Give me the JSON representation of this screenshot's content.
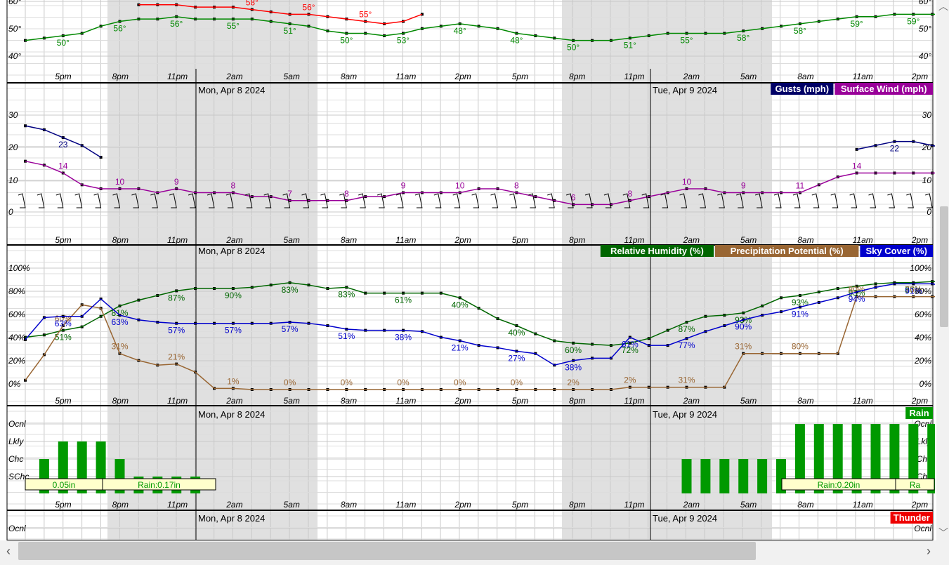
{
  "chart_data": [
    {
      "type": "line",
      "id": "temperature",
      "yticks": [
        "40°",
        "50°",
        "60°"
      ],
      "xticks": [
        "5pm",
        "8pm",
        "11pm",
        "2am",
        "5am",
        "8am",
        "11am",
        "2pm",
        "5pm",
        "8pm",
        "11pm",
        "2am",
        "5am",
        "8am",
        "11am",
        "2pm"
      ],
      "series": [
        {
          "color": "#008800",
          "values": [
            47,
            48,
            49,
            50,
            53,
            55,
            56,
            56,
            57,
            56,
            56,
            56,
            56,
            55,
            54,
            53,
            51,
            50,
            50,
            49,
            50,
            52,
            53,
            54,
            53,
            52,
            50,
            49,
            48,
            47,
            47,
            47,
            48,
            49,
            50,
            50,
            50,
            50,
            51,
            52,
            53,
            54,
            55,
            56,
            57,
            57,
            58,
            58,
            58,
            58,
            59,
            59,
            59,
            59,
            59,
            59
          ],
          "labels": [
            [
              "50°",
              2
            ],
            [
              "56°",
              5
            ],
            [
              "56°",
              8
            ],
            [
              "55°",
              11
            ],
            [
              "51°",
              14
            ],
            [
              "50°",
              17
            ],
            [
              "53°",
              20
            ],
            [
              "48°",
              23
            ],
            [
              "48°",
              26
            ],
            [
              "50°",
              29
            ],
            [
              "51°",
              32
            ],
            [
              "55°",
              35
            ],
            [
              "58°",
              38
            ],
            [
              "58°",
              41
            ],
            [
              "59°",
              44
            ],
            [
              "59°",
              47
            ]
          ]
        },
        {
          "color": "#ff0000",
          "values": [
            null,
            null,
            null,
            null,
            null,
            null,
            62,
            62,
            62,
            61,
            61,
            61,
            60,
            59,
            58,
            58,
            57,
            56,
            55,
            54,
            55,
            58,
            null,
            null,
            null,
            null,
            null,
            null,
            null,
            null,
            null,
            null,
            null,
            null,
            null,
            null,
            null,
            null,
            null,
            null,
            null,
            null,
            null,
            null,
            null,
            null,
            null,
            null,
            null,
            null,
            null,
            null,
            null,
            null,
            null,
            null
          ],
          "labels": [
            [
              "58°",
              12
            ],
            [
              "56°",
              15
            ],
            [
              "55°",
              18
            ]
          ]
        }
      ]
    },
    {
      "type": "line",
      "id": "wind",
      "yticks": [
        "0",
        "10",
        "20",
        "30"
      ],
      "xticks": [
        "5pm",
        "8pm",
        "11pm",
        "2am",
        "5am",
        "8am",
        "11am",
        "2pm",
        "5pm",
        "8pm",
        "11pm",
        "2am",
        "5am",
        "8am",
        "11am",
        "2pm"
      ],
      "date_labels": [
        "Mon, Apr 8 2024",
        "Tue, Apr 9 2024"
      ],
      "legend": [
        "Gusts (mph)",
        "Surface Wind (mph)"
      ],
      "series": [
        {
          "name": "Gusts (mph)",
          "color": "#000080",
          "values": [
            26,
            25,
            23,
            21,
            18,
            null,
            null,
            null,
            null,
            null,
            null,
            null,
            null,
            null,
            null,
            null,
            null,
            null,
            null,
            null,
            null,
            null,
            null,
            null,
            null,
            null,
            null,
            null,
            null,
            null,
            null,
            null,
            null,
            null,
            null,
            null,
            null,
            null,
            null,
            null,
            null,
            null,
            null,
            null,
            20,
            21,
            22,
            22,
            21,
            20
          ],
          "labels": [
            [
              "23",
              2
            ],
            [
              "22",
              46
            ],
            [
              "20",
              49
            ]
          ]
        },
        {
          "name": "Surface Wind (mph)",
          "color": "#990099",
          "values": [
            17,
            16,
            14,
            11,
            10,
            10,
            10,
            9,
            10,
            9,
            9,
            9,
            8,
            8,
            7,
            7,
            7,
            7,
            8,
            8,
            9,
            9,
            9,
            9,
            10,
            10,
            9,
            8,
            7,
            6,
            6,
            6,
            7,
            8,
            9,
            10,
            10,
            9,
            9,
            9,
            9,
            9,
            11,
            13,
            14,
            14,
            14,
            14,
            14,
            14
          ],
          "labels": [
            [
              "14",
              2
            ],
            [
              "10",
              5
            ],
            [
              "9",
              8
            ],
            [
              "8",
              11
            ],
            [
              "7",
              14
            ],
            [
              "8",
              17
            ],
            [
              "9",
              20
            ],
            [
              "10",
              23
            ],
            [
              "8",
              26
            ],
            [
              "6",
              29
            ],
            [
              "8",
              32
            ],
            [
              "10",
              35
            ],
            [
              "9",
              38
            ],
            [
              "11",
              41
            ],
            [
              "14",
              44
            ],
            [
              "14",
              49
            ]
          ]
        }
      ]
    },
    {
      "type": "line",
      "id": "humidity",
      "yticks": [
        "0%",
        "20%",
        "40%",
        "60%",
        "80%",
        "100%"
      ],
      "xticks": [
        "5pm",
        "8pm",
        "11pm",
        "2am",
        "5am",
        "8am",
        "11am",
        "2pm",
        "5pm",
        "8pm",
        "11pm",
        "2am",
        "5am",
        "8am",
        "11am",
        "2pm"
      ],
      "date_labels": [
        "Mon, Apr 8 2024"
      ],
      "legend": [
        "Relative Humidity (%)",
        "Precipitation Potential (%)",
        "Sky Cover (%)"
      ],
      "series": [
        {
          "name": "Relative Humidity (%)",
          "color": "#006600",
          "values": [
            45,
            47,
            51,
            54,
            63,
            72,
            77,
            81,
            85,
            87,
            87,
            87,
            88,
            90,
            92,
            90,
            87,
            88,
            83,
            83,
            83,
            83,
            83,
            79,
            70,
            61,
            55,
            48,
            42,
            40,
            39,
            38,
            40,
            44,
            51,
            58,
            63,
            64,
            66,
            72,
            79,
            81,
            84,
            87,
            89,
            91,
            92,
            92,
            93,
            93,
            93,
            93,
            93,
            91,
            87,
            86
          ],
          "labels": [
            [
              "51%",
              2
            ],
            [
              "81%",
              5
            ],
            [
              "87%",
              8
            ],
            [
              "90%",
              11
            ],
            [
              "83%",
              14
            ],
            [
              "83%",
              17
            ],
            [
              "61%",
              20
            ],
            [
              "40%",
              23
            ],
            [
              "40%",
              26
            ],
            [
              "60%",
              29
            ],
            [
              "72%",
              32
            ],
            [
              "87%",
              35
            ],
            [
              "93%",
              38
            ],
            [
              "93%",
              41
            ],
            [
              "93%",
              44
            ],
            [
              "87%",
              47
            ]
          ]
        },
        {
          "name": "Precipitation Potential (%)",
          "color": "#996633",
          "values": [
            8,
            30,
            55,
            73,
            70,
            31,
            25,
            21,
            22,
            15,
            1,
            1,
            0,
            0,
            0,
            0,
            0,
            0,
            0,
            0,
            0,
            0,
            0,
            0,
            0,
            0,
            0,
            0,
            0,
            0,
            0,
            0,
            2,
            2,
            2,
            2,
            2,
            2,
            31,
            31,
            31,
            31,
            31,
            31,
            80,
            80,
            80,
            80,
            80,
            80,
            80,
            76,
            76
          ],
          "labels": [
            [
              "60%",
              2
            ],
            [
              "31%",
              5
            ],
            [
              "21%",
              8
            ],
            [
              "1%",
              11
            ],
            [
              "0%",
              14
            ],
            [
              "0%",
              17
            ],
            [
              "0%",
              20
            ],
            [
              "0%",
              23
            ],
            [
              "0%",
              26
            ],
            [
              "2%",
              29
            ],
            [
              "2%",
              32
            ],
            [
              "31%",
              35
            ],
            [
              "31%",
              38
            ],
            [
              "80%",
              41
            ],
            [
              "80%",
              44
            ],
            [
              "76%",
              47
            ]
          ]
        },
        {
          "name": "Sky Cover (%)",
          "color": "#0000cc",
          "values": [
            43,
            62,
            63,
            63,
            78,
            64,
            60,
            58,
            57,
            57,
            57,
            57,
            57,
            57,
            58,
            57,
            55,
            52,
            51,
            51,
            51,
            50,
            45,
            42,
            38,
            36,
            33,
            31,
            21,
            25,
            27,
            27,
            45,
            38,
            38,
            44,
            50,
            55,
            60,
            64,
            67,
            71,
            75,
            79,
            84,
            88,
            91,
            91,
            91,
            88,
            92,
            94,
            95,
            93,
            92,
            91
          ],
          "labels": [
            [
              "63%",
              2
            ],
            [
              "63%",
              5
            ],
            [
              "57%",
              8
            ],
            [
              "57%",
              11
            ],
            [
              "57%",
              14
            ],
            [
              "51%",
              17
            ],
            [
              "38%",
              20
            ],
            [
              "21%",
              23
            ],
            [
              "27%",
              26
            ],
            [
              "38%",
              29
            ],
            [
              "61%",
              32
            ],
            [
              "77%",
              35
            ],
            [
              "90%",
              38
            ],
            [
              "91%",
              41
            ],
            [
              "94%",
              44
            ],
            [
              "91%",
              47
            ]
          ]
        }
      ]
    },
    {
      "type": "bar",
      "id": "rain",
      "yticks": [
        "Ocnl",
        "Lkly",
        "Chc",
        "SChc"
      ],
      "xticks": [
        "5pm",
        "8pm",
        "11pm",
        "2am",
        "5am",
        "8am",
        "11am",
        "2pm",
        "5pm",
        "8pm",
        "11pm",
        "2am",
        "5am",
        "8am",
        "11am",
        "2pm"
      ],
      "date_labels": [
        "Mon, Apr 8 2024",
        "Tue, Apr 9 2024"
      ],
      "legend": [
        "Rain"
      ],
      "bars_level": [
        0,
        2,
        3,
        3,
        3,
        2,
        1,
        1,
        1,
        1,
        null,
        null,
        null,
        null,
        null,
        null,
        null,
        null,
        null,
        null,
        null,
        null,
        null,
        null,
        null,
        null,
        null,
        null,
        null,
        null,
        null,
        null,
        null,
        null,
        null,
        2,
        2,
        2,
        2,
        2,
        2,
        4,
        4,
        4,
        4,
        4,
        4,
        4,
        4,
        4
      ],
      "amounts": [
        "0.05in",
        "Rain:0.17in",
        "Rain:0.20in",
        "Ra"
      ]
    },
    {
      "type": "bar",
      "id": "thunder",
      "yticks": [
        "Ocnl"
      ],
      "date_labels": [
        "Mon, Apr 8 2024",
        "Tue, Apr 9 2024"
      ],
      "legend": [
        "Thunder"
      ]
    }
  ]
}
